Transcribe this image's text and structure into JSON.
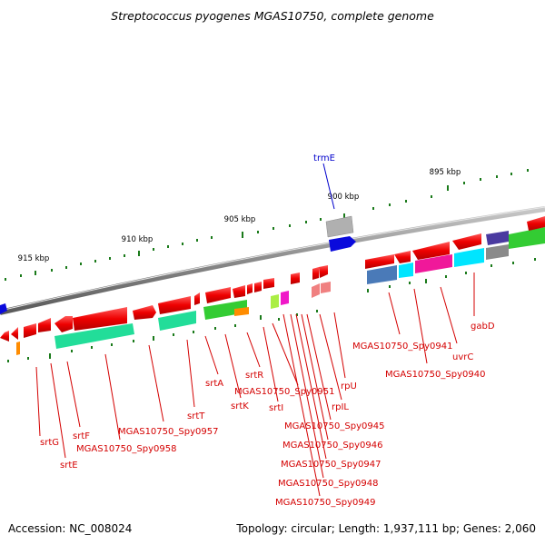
{
  "title": "Streptococcus pyogenes MGAS10750, complete genome",
  "footer": {
    "accession": "Accession: NC_008024",
    "summary": "Topology: circular; Length: 1,937,111 bp; Genes: 2,060"
  },
  "scale": {
    "labels": [
      "895 kbp",
      "900 kbp",
      "905 kbp",
      "910 kbp",
      "915 kbp"
    ]
  },
  "genes": {
    "trmE": "trmE",
    "gabD": "gabD",
    "uvrC": "uvrC",
    "spy0940": "MGAS10750_Spy0940",
    "spy0941": "MGAS10750_Spy0941",
    "rpIL": "rpIL",
    "rpU": "rpU",
    "spy0945": "MGAS10750_Spy0945",
    "spy0946": "MGAS10750_Spy0946",
    "spy0947": "MGAS10750_Spy0947",
    "spy0948": "MGAS10750_Spy0948",
    "spy0949": "MGAS10750_Spy0949",
    "spy0951": "MGAS10750_Spy0951",
    "srtI": "srtI",
    "srtR": "srtR",
    "srtK": "srtK",
    "srtA": "srtA",
    "srtT": "srtT",
    "spy0957": "MGAS10750_Spy0957",
    "spy0958": "MGAS10750_Spy0958",
    "srtF": "srtF",
    "srtE": "srtE",
    "srtG": "srtG"
  },
  "colors": {
    "gene_label": "#d40000",
    "trmE_label": "#0000cc",
    "cds_red": "#ee0000",
    "backbone": "#8a8a8a",
    "tick": "#1a7a1a"
  }
}
